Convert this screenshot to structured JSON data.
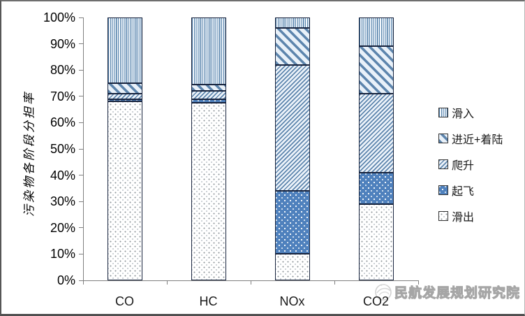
{
  "chart_data": {
    "type": "bar",
    "subtype": "100-percent-stacked-column",
    "title": "",
    "xlabel": "",
    "ylabel": "污染物各阶段分担率",
    "ylim": [
      0,
      100
    ],
    "ytick_labels": [
      "0%",
      "10%",
      "20%",
      "30%",
      "40%",
      "50%",
      "60%",
      "70%",
      "80%",
      "90%",
      "100%"
    ],
    "grid": false,
    "categories": [
      "CO",
      "HC",
      "NOx",
      "CO2"
    ],
    "series": [
      {
        "name": "滑出",
        "key": "taxi-out",
        "values": [
          68,
          67.5,
          10,
          29
        ]
      },
      {
        "name": "起飞",
        "key": "takeoff",
        "values": [
          1,
          1.5,
          24,
          12
        ]
      },
      {
        "name": "爬升",
        "key": "climb",
        "values": [
          2,
          3,
          48,
          30
        ]
      },
      {
        "name": "进近+着陆",
        "key": "approach-landing",
        "values": [
          4,
          2.5,
          14,
          18
        ]
      },
      {
        "name": "滑入",
        "key": "taxi-in",
        "values": [
          25,
          25.5,
          4,
          11
        ]
      }
    ],
    "stacking": "bottom-to-top",
    "legend_position": "right",
    "legend": [
      {
        "label": "滑入",
        "key": "taxi-in"
      },
      {
        "label": "进近+着陆",
        "key": "approach-landing"
      },
      {
        "label": "爬升",
        "key": "climb"
      },
      {
        "label": "起飞",
        "key": "takeoff"
      },
      {
        "label": "滑出",
        "key": "taxi-out"
      }
    ]
  },
  "watermark": {
    "org_text": "民航发展规划研究院"
  },
  "colors": {
    "takeoff_fill": "#4f81bd",
    "pattern_stroke_blue": "#5d85ad",
    "pattern_light_bg": "#edf3fa",
    "segment_border_navy": "#17233d",
    "axis_gray": "#808080",
    "text_black": "#000000",
    "watermark_gray": "#a6a6a6",
    "frame_gray": "#565656"
  }
}
